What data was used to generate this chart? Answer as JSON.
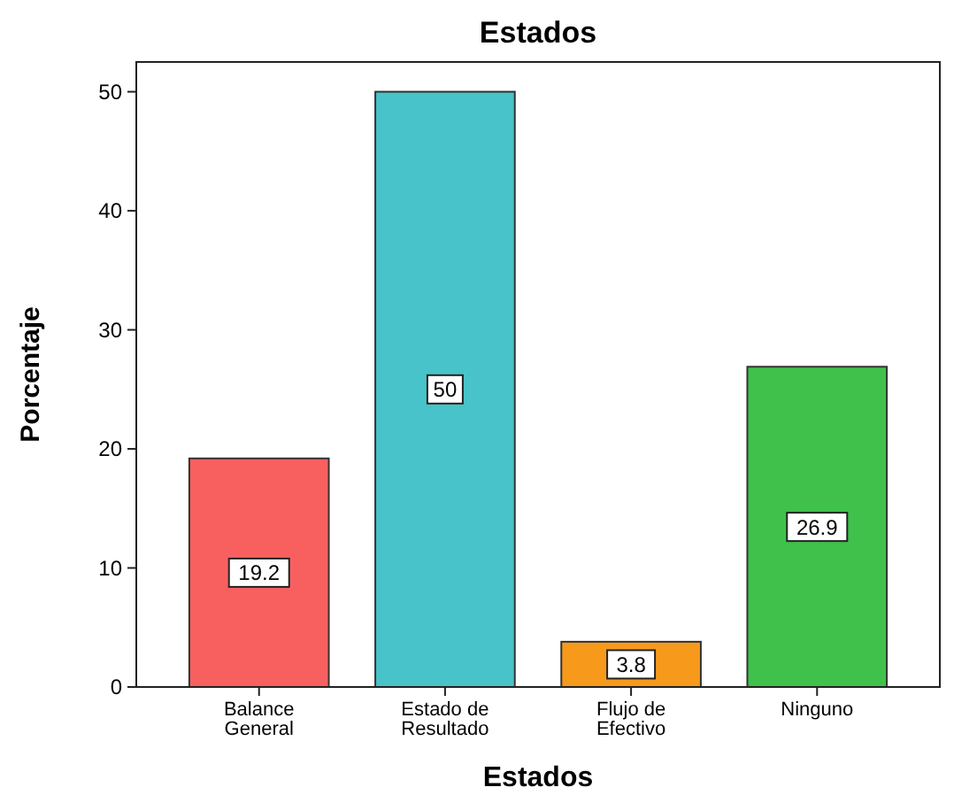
{
  "chart_data": {
    "type": "bar",
    "title": "Estados",
    "xlabel": "Estados",
    "ylabel": "Porcentaje",
    "categories": [
      "Balance General",
      "Estado de Resultado",
      "Flujo de Efectivo",
      "Ninguno"
    ],
    "values": [
      19.2,
      50,
      3.8,
      26.9
    ],
    "colors": [
      "#f8605f",
      "#48c3c9",
      "#f79a1c",
      "#3fc14c"
    ],
    "ylim": [
      0,
      52.5
    ],
    "yticks": [
      0,
      10,
      20,
      30,
      40,
      50
    ],
    "grid": false,
    "data_labels": true
  }
}
